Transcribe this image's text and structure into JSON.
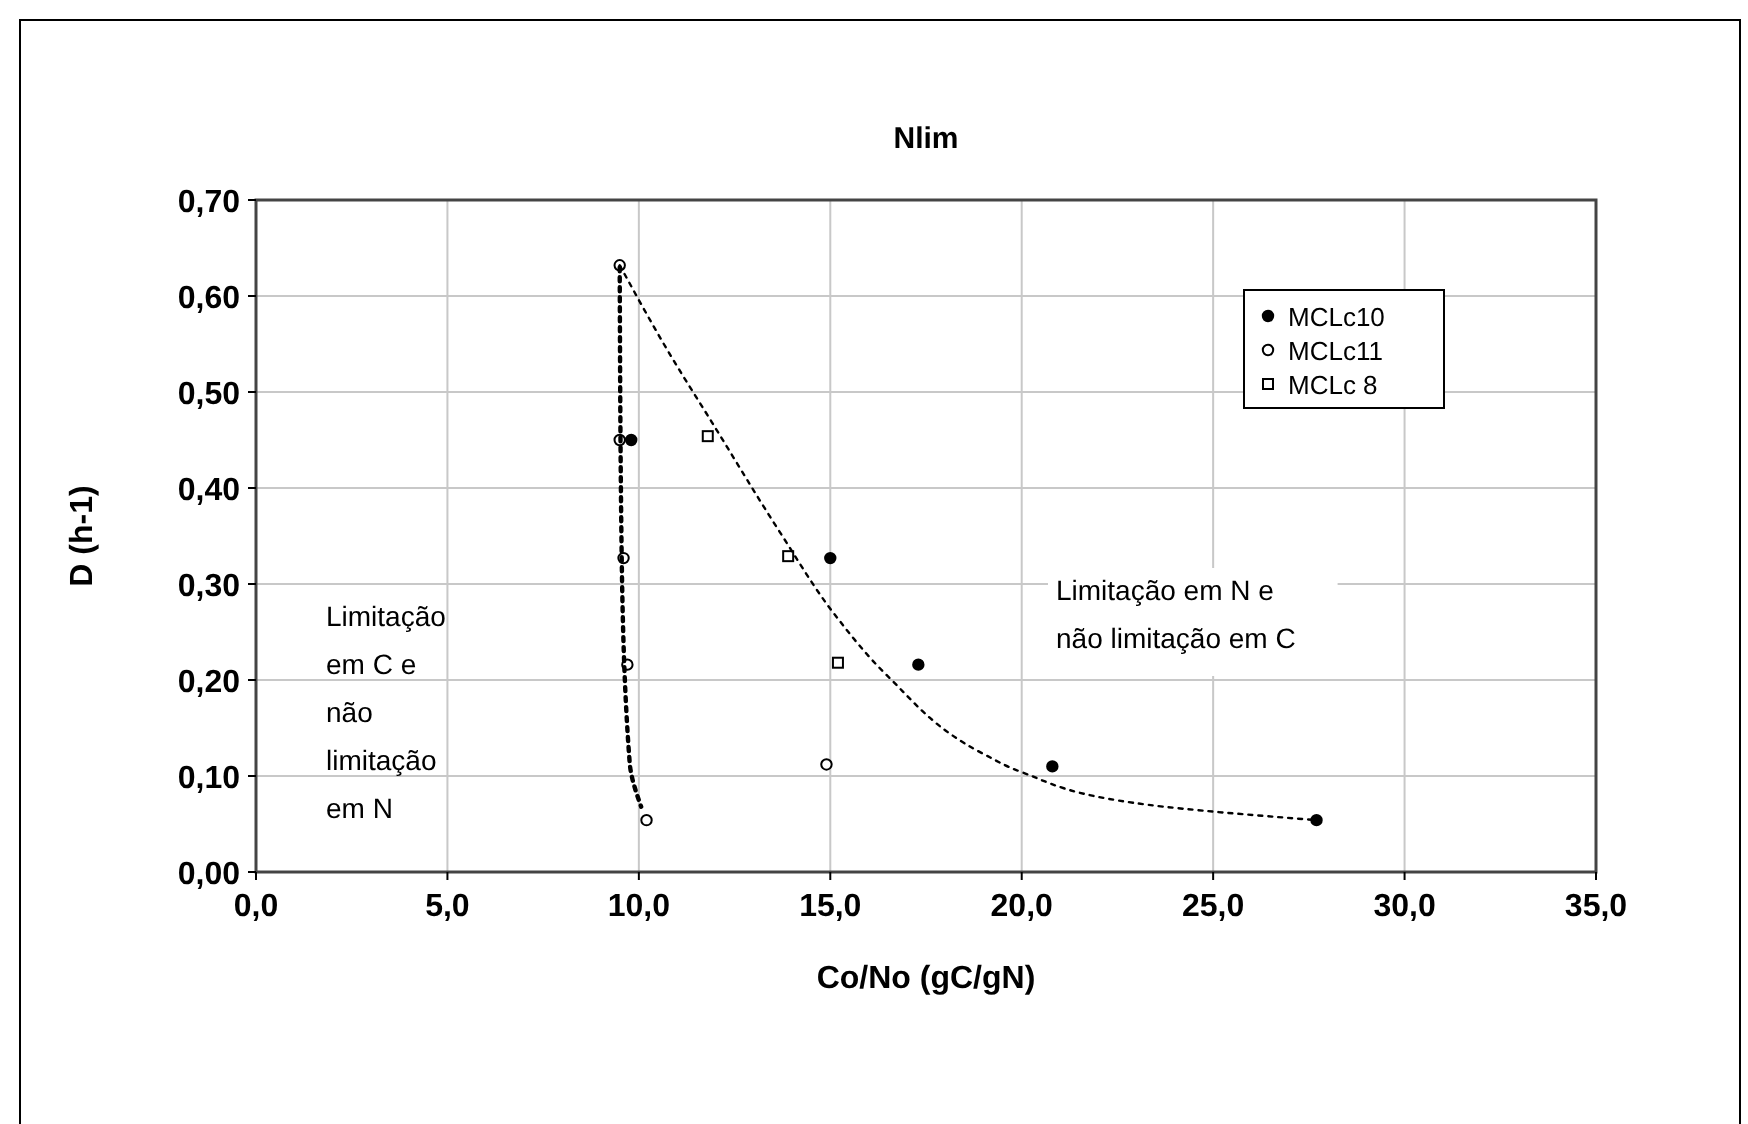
{
  "chart_data": {
    "type": "scatter",
    "title": "Nlim",
    "xlabel": "Co/No (gC/gN)",
    "ylabel": "D (h-1)",
    "xlim": [
      0,
      35
    ],
    "ylim": [
      0,
      0.7
    ],
    "xticks": [
      {
        "value": 0,
        "label": "0,0"
      },
      {
        "value": 5,
        "label": "5,0"
      },
      {
        "value": 10,
        "label": "10,0"
      },
      {
        "value": 15,
        "label": "15,0"
      },
      {
        "value": 20,
        "label": "20,0"
      },
      {
        "value": 25,
        "label": "25,0"
      },
      {
        "value": 30,
        "label": "30,0"
      },
      {
        "value": 35,
        "label": "35,0"
      }
    ],
    "yticks": [
      {
        "value": 0,
        "label": "0,00"
      },
      {
        "value": 0.1,
        "label": "0,10"
      },
      {
        "value": 0.2,
        "label": "0,20"
      },
      {
        "value": 0.3,
        "label": "0,30"
      },
      {
        "value": 0.4,
        "label": "0,40"
      },
      {
        "value": 0.5,
        "label": "0,50"
      },
      {
        "value": 0.6,
        "label": "0,60"
      },
      {
        "value": 0.7,
        "label": "0,70"
      }
    ],
    "grid": true,
    "legend": "top right",
    "series": [
      {
        "name": "MCLc10",
        "color": "#000000",
        "marker": "circle",
        "x": [
          9.8,
          15.0,
          17.3,
          20.8,
          27.7
        ],
        "values": [
          0.45,
          0.327,
          0.216,
          0.11,
          0.054
        ]
      },
      {
        "name": "MCLc11",
        "color": "#000000",
        "marker": "circle",
        "x": [
          9.5,
          9.5,
          9.6,
          9.7,
          14.9,
          10.2
        ],
        "values": [
          0.632,
          0.45,
          0.327,
          0.216,
          0.112,
          0.054
        ]
      },
      {
        "name": "MCLc 8",
        "color": "#000000",
        "marker": "square",
        "x": [
          11.8,
          13.9,
          15.2
        ],
        "values": [
          0.454,
          0.329,
          0.218
        ]
      },
      {
        "type": "line",
        "color": "#000000",
        "line_style": "dotted",
        "x": [
          9.5,
          9.55,
          9.76,
          10.06
        ],
        "values": [
          0.63,
          0.333,
          0.114,
          0.068
        ]
      },
      {
        "type": "line",
        "color": "#000000",
        "line_style": "dotted",
        "x": [
          9.5,
          10.8,
          11.9,
          13.7,
          15.1,
          16.5,
          19.0,
          20.0,
          23.3,
          27.7
        ],
        "values": [
          0.632,
          0.54,
          0.469,
          0.353,
          0.269,
          0.204,
          0.123,
          0.104,
          0.07,
          0.054
        ]
      }
    ],
    "annotations": [
      "Limitação\nem C e\nnão\nlimitação\nem N",
      "Limitação em N e\nnão limitação em C"
    ]
  }
}
